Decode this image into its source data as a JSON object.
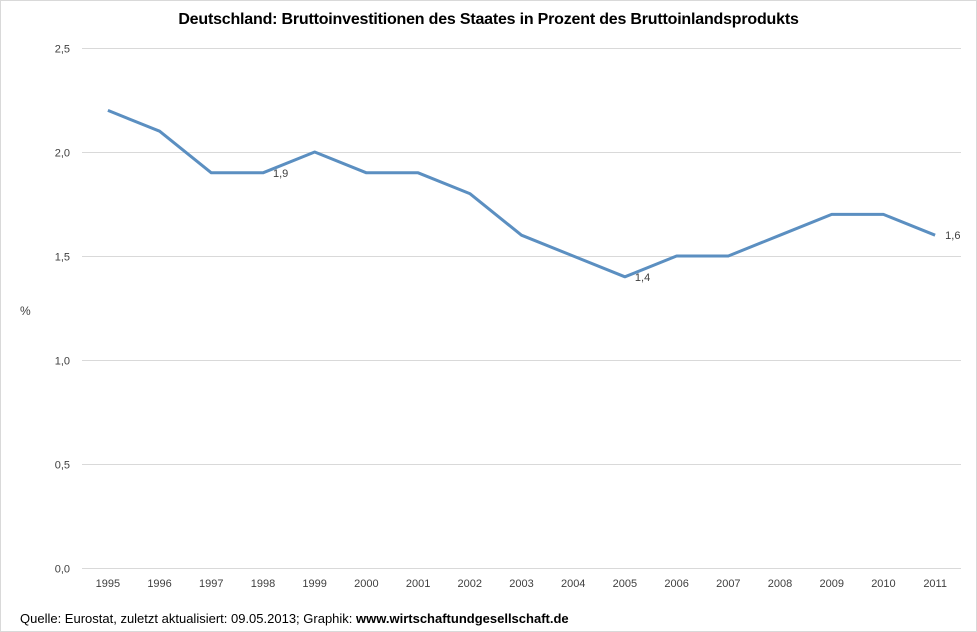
{
  "chart_data": {
    "type": "line",
    "title": "Deutschland: Bruttoinvestitionen des Staates in Prozent des Bruttoinlandsprodukts",
    "xlabel": "",
    "ylabel": "%",
    "categories": [
      "1995",
      "1996",
      "1997",
      "1998",
      "1999",
      "2000",
      "2001",
      "2002",
      "2003",
      "2004",
      "2005",
      "2006",
      "2007",
      "2008",
      "2009",
      "2010",
      "2011"
    ],
    "series": [
      {
        "name": "Bruttoinvestitionen des Staates (% des BIP)",
        "color": "#5b8fc1",
        "values": [
          2.2,
          2.1,
          1.9,
          1.9,
          2.0,
          1.9,
          1.9,
          1.8,
          1.6,
          1.5,
          1.4,
          1.5,
          1.5,
          1.6,
          1.7,
          1.7,
          1.6
        ]
      }
    ],
    "data_labels": [
      {
        "category": "1998",
        "text": "1,9"
      },
      {
        "category": "2005",
        "text": "1,4"
      },
      {
        "category": "2011",
        "text": "1,6"
      }
    ],
    "ylim": [
      0,
      2.5
    ],
    "yticks": [
      0,
      0.5,
      1.0,
      1.5,
      2.0,
      2.5
    ],
    "ytick_labels": [
      "0,0",
      "0,5",
      "1,0",
      "1,5",
      "2,0",
      "2,5"
    ],
    "grid": true,
    "legend": "none"
  },
  "footer": {
    "source_prefix": "Quelle: Eurostat, zuletzt aktualisiert: 09.05.2013; Graphik: ",
    "source_site": "www.wirtschaftundgesellschaft.de"
  }
}
